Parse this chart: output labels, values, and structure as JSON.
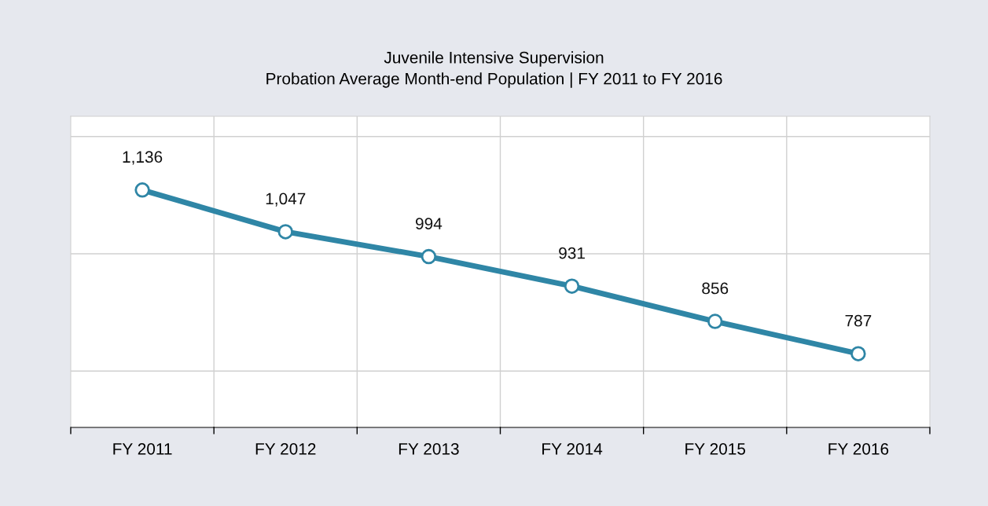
{
  "chart_data": {
    "type": "line",
    "title": "Juvenile Intensive Supervision",
    "subtitle": "Probation Average Month-end Population | FY 2011 to FY 2016",
    "categories": [
      "FY 2011",
      "FY 2012",
      "FY 2013",
      "FY 2014",
      "FY 2015",
      "FY 2016"
    ],
    "series": [
      {
        "color": "#2f86a6",
        "values": [
          1136,
          1047,
          994,
          931,
          856,
          787
        ],
        "value_labels": [
          "1,136",
          "1,047",
          "994",
          "931",
          "856",
          "787"
        ]
      }
    ],
    "tick_labels": "x",
    "grid": true,
    "marker": "circle",
    "line_style": "solid"
  }
}
